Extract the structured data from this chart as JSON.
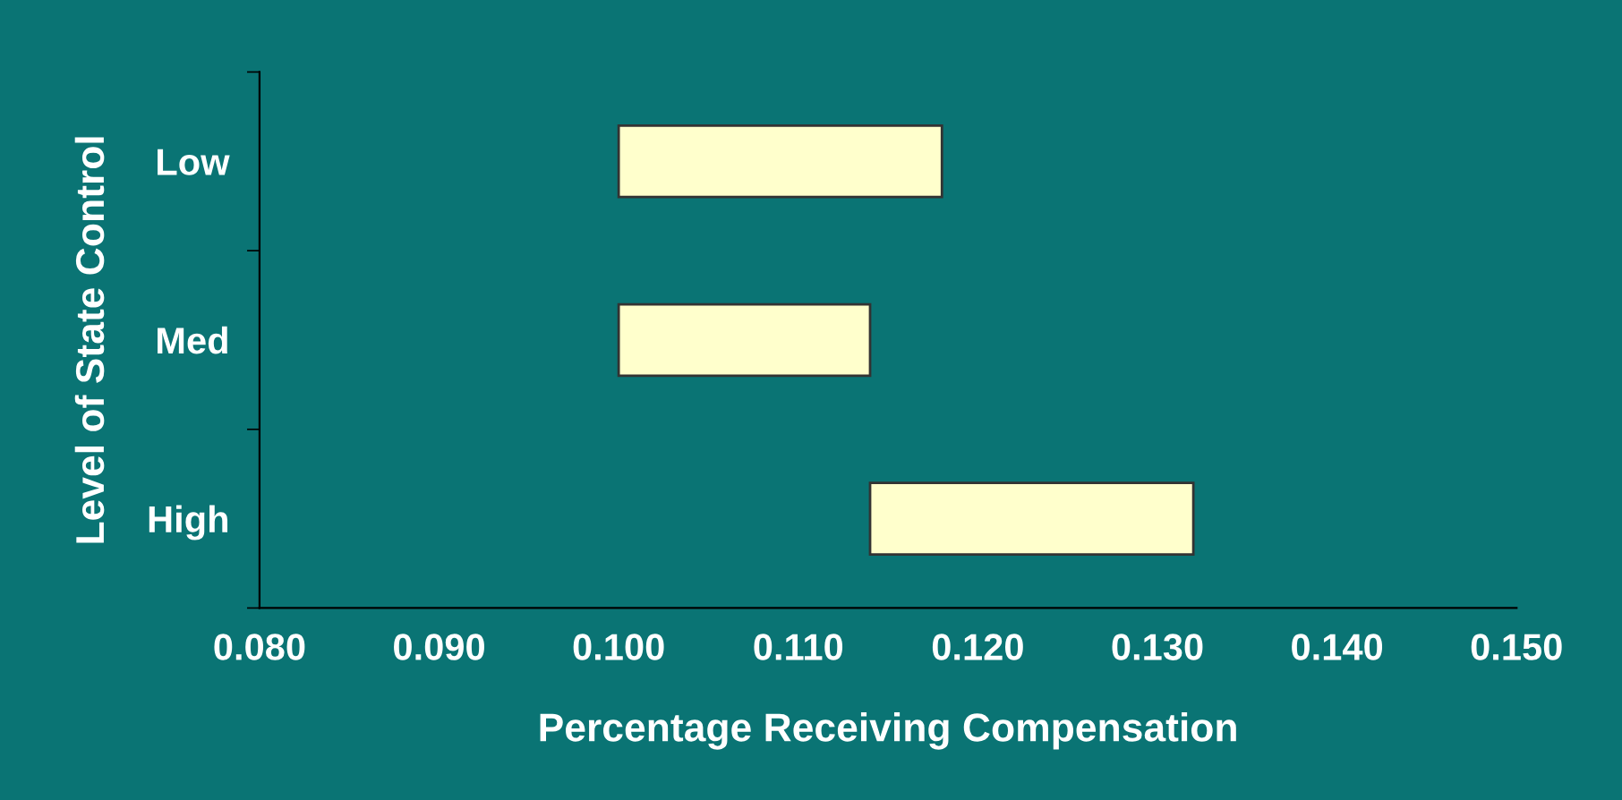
{
  "chart_data": {
    "type": "bar",
    "orientation": "horizontal",
    "xlabel": "Percentage Receiving Compensation",
    "ylabel": "Level of State Control",
    "categories": [
      "Low",
      "Med",
      "High"
    ],
    "base": [
      0.1,
      0.1,
      0.114
    ],
    "values": [
      0.018,
      0.014,
      0.018
    ],
    "color": "#ffffcc",
    "xlim": [
      0.08,
      0.15
    ],
    "xticks": [
      {
        "value": 0.08,
        "label": "0.080"
      },
      {
        "value": 0.09,
        "label": "0.090"
      },
      {
        "value": 0.1,
        "label": "0.100"
      },
      {
        "value": 0.11,
        "label": "0.110"
      },
      {
        "value": 0.12,
        "label": "0.120"
      },
      {
        "value": 0.13,
        "label": "0.130"
      },
      {
        "value": 0.14,
        "label": "0.140"
      },
      {
        "value": 0.15,
        "label": "0.150"
      }
    ],
    "grid": false,
    "legend": false
  }
}
